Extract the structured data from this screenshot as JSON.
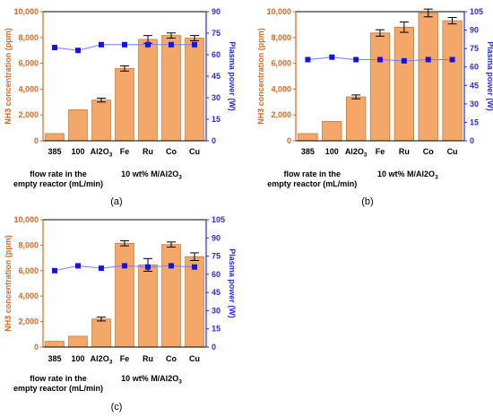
{
  "colors": {
    "bar_fill": "#f3a86a",
    "bar_edge": "#c77b3a",
    "left_axis": "#d2691e",
    "right_axis": "#2b2bd6",
    "power_marker": "#1414e6",
    "power_line": "#7a7aff",
    "errorbar": "#000000"
  },
  "chart_data": [
    {
      "type": "bar",
      "panel_label": "(a)",
      "categories": [
        "385",
        "100",
        "Al2O3",
        "Fe",
        "Ru",
        "Co",
        "Cu"
      ],
      "values": [
        560,
        2400,
        3150,
        5600,
        7850,
        8150,
        7950
      ],
      "errors": [
        0,
        0,
        150,
        200,
        300,
        200,
        200
      ],
      "series": [
        {
          "name": "NH3 concentration",
          "axis": "left",
          "values": [
            560,
            2400,
            3150,
            5600,
            7850,
            8150,
            7950
          ]
        },
        {
          "name": "Plasma power",
          "axis": "right",
          "type": "line",
          "values": [
            65,
            63,
            67,
            67,
            67,
            67,
            67
          ]
        }
      ],
      "ylabel": "NH3 concentration (ppm)",
      "ylabel_right": "Plasma power (W)",
      "ylim": [
        0,
        10000
      ],
      "ylim_right": [
        0,
        90
      ],
      "yticks": [
        "0",
        "2,000",
        "4,000",
        "6,000",
        "8,000",
        "10,000"
      ],
      "yticks_right": [
        "0",
        "15",
        "30",
        "45",
        "60",
        "75",
        "90"
      ],
      "group_labels": [
        "flow rate in the empty reactor (mL/min)",
        "10 wt% M/Al2O3"
      ]
    },
    {
      "type": "bar",
      "panel_label": "(b)",
      "categories": [
        "385",
        "100",
        "Al2O3",
        "Fe",
        "Ru",
        "Co",
        "Cu"
      ],
      "values": [
        560,
        1500,
        3400,
        8350,
        8800,
        9900,
        9300
      ],
      "errors": [
        0,
        0,
        150,
        250,
        400,
        300,
        250
      ],
      "series": [
        {
          "name": "NH3 concentration",
          "axis": "left",
          "values": [
            560,
            1500,
            3400,
            8350,
            8800,
            9900,
            9300
          ]
        },
        {
          "name": "Plasma power",
          "axis": "right",
          "type": "line",
          "values": [
            66,
            68,
            66,
            66,
            65,
            66,
            66
          ]
        }
      ],
      "ylabel": "NH3 concentration (ppm)",
      "ylabel_right": "Plasma power (W)",
      "ylim": [
        0,
        10000
      ],
      "ylim_right": [
        0,
        105
      ],
      "yticks": [
        "0",
        "2,000",
        "4,000",
        "6,000",
        "8,000",
        "10,000"
      ],
      "yticks_right": [
        "0",
        "15",
        "30",
        "45",
        "60",
        "75",
        "90",
        "105"
      ],
      "group_labels": [
        "flow rate in the empty reactor (mL/min)",
        "10 wt% M/Al2O3"
      ]
    },
    {
      "type": "bar",
      "panel_label": "(c)",
      "categories": [
        "385",
        "100",
        "Al2O3",
        "Fe",
        "Ru",
        "Co",
        "Cu"
      ],
      "values": [
        450,
        850,
        2200,
        8150,
        6450,
        8050,
        7100
      ],
      "errors": [
        0,
        0,
        150,
        200,
        500,
        200,
        300
      ],
      "series": [
        {
          "name": "NH3 concentration",
          "axis": "left",
          "values": [
            450,
            850,
            2200,
            8150,
            6450,
            8050,
            7100
          ]
        },
        {
          "name": "Plasma power",
          "axis": "right",
          "type": "line",
          "values": [
            63,
            67,
            65,
            67,
            66,
            67,
            66
          ]
        }
      ],
      "ylabel": "NH3 concentration (ppm)",
      "ylabel_right": "Plasma power (W)",
      "ylim": [
        0,
        10000
      ],
      "ylim_right": [
        0,
        105
      ],
      "yticks": [
        "0",
        "2,000",
        "4,000",
        "6,000",
        "8,000",
        "10,000"
      ],
      "yticks_right": [
        "0",
        "15",
        "30",
        "45",
        "60",
        "75",
        "90",
        "105"
      ],
      "group_labels": [
        "flow rate in the empty reactor (mL/min)",
        "10 wt% M/Al2O3"
      ]
    }
  ]
}
